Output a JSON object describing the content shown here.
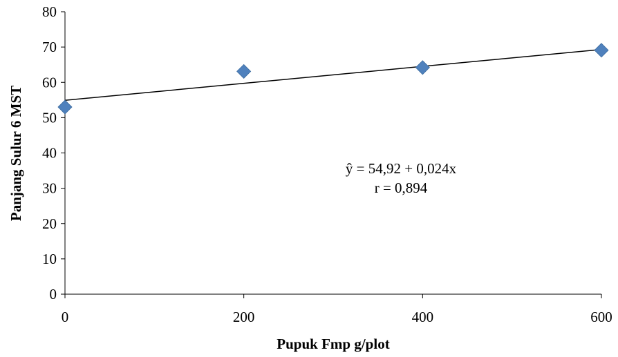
{
  "chart_data": {
    "type": "scatter",
    "title": "",
    "xlabel": "Pupuk Fmp g/plot",
    "ylabel": "Panjang Sulur 6 MST",
    "xlim": [
      0,
      600
    ],
    "ylim": [
      0,
      80
    ],
    "x_ticks": [
      0,
      200,
      400,
      600
    ],
    "y_ticks": [
      0,
      10,
      20,
      30,
      40,
      50,
      60,
      70,
      80
    ],
    "grid": false,
    "legend": "none",
    "marker": "diamond",
    "marker_color": "#4F81BD",
    "series": [
      {
        "x": [
          0,
          200,
          400,
          600
        ],
        "y": [
          53.0,
          63.1,
          64.2,
          69.1
        ]
      }
    ],
    "trendline": {
      "intercept": 54.92,
      "slope": 0.024,
      "color": "#000000"
    },
    "annotations": {
      "equation": "ŷ = 54,92 + 0,024x",
      "r_value": "r = 0,894"
    }
  }
}
